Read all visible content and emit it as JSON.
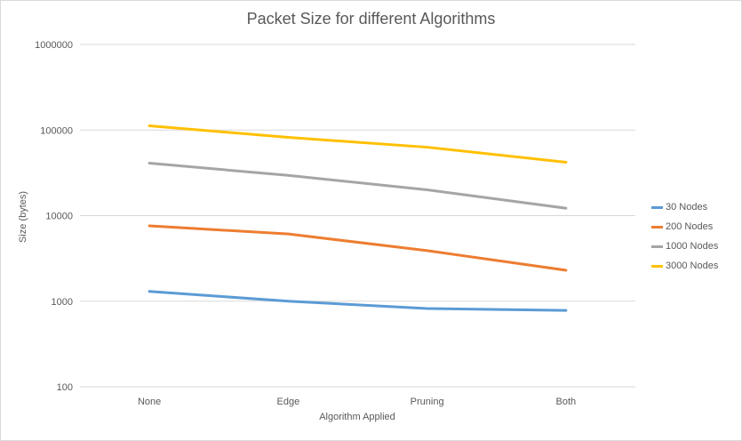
{
  "chart_data": {
    "type": "line",
    "title": "Packet Size for different Algorithms",
    "xlabel": "Algorithm Applied",
    "ylabel": "Size (bytes)",
    "categories": [
      "None",
      "Edge",
      "Pruning",
      "Both"
    ],
    "yscale": "log",
    "ylim": [
      100,
      1000000
    ],
    "yticks": [
      "100",
      "1000",
      "10000",
      "100000",
      "1000000"
    ],
    "grid": true,
    "legend_position": "right",
    "series": [
      {
        "name": "30 Nodes",
        "color": "#5b9bd5",
        "values": [
          1300,
          1000,
          820,
          780
        ]
      },
      {
        "name": "200 Nodes",
        "color": "#ed7d31",
        "values": [
          7600,
          6100,
          3900,
          2300
        ]
      },
      {
        "name": "1000 Nodes",
        "color": "#a5a5a5",
        "values": [
          41000,
          29500,
          20000,
          12200
        ]
      },
      {
        "name": "3000 Nodes",
        "color": "#ffc000",
        "values": [
          112000,
          82000,
          63000,
          42000
        ]
      }
    ]
  }
}
